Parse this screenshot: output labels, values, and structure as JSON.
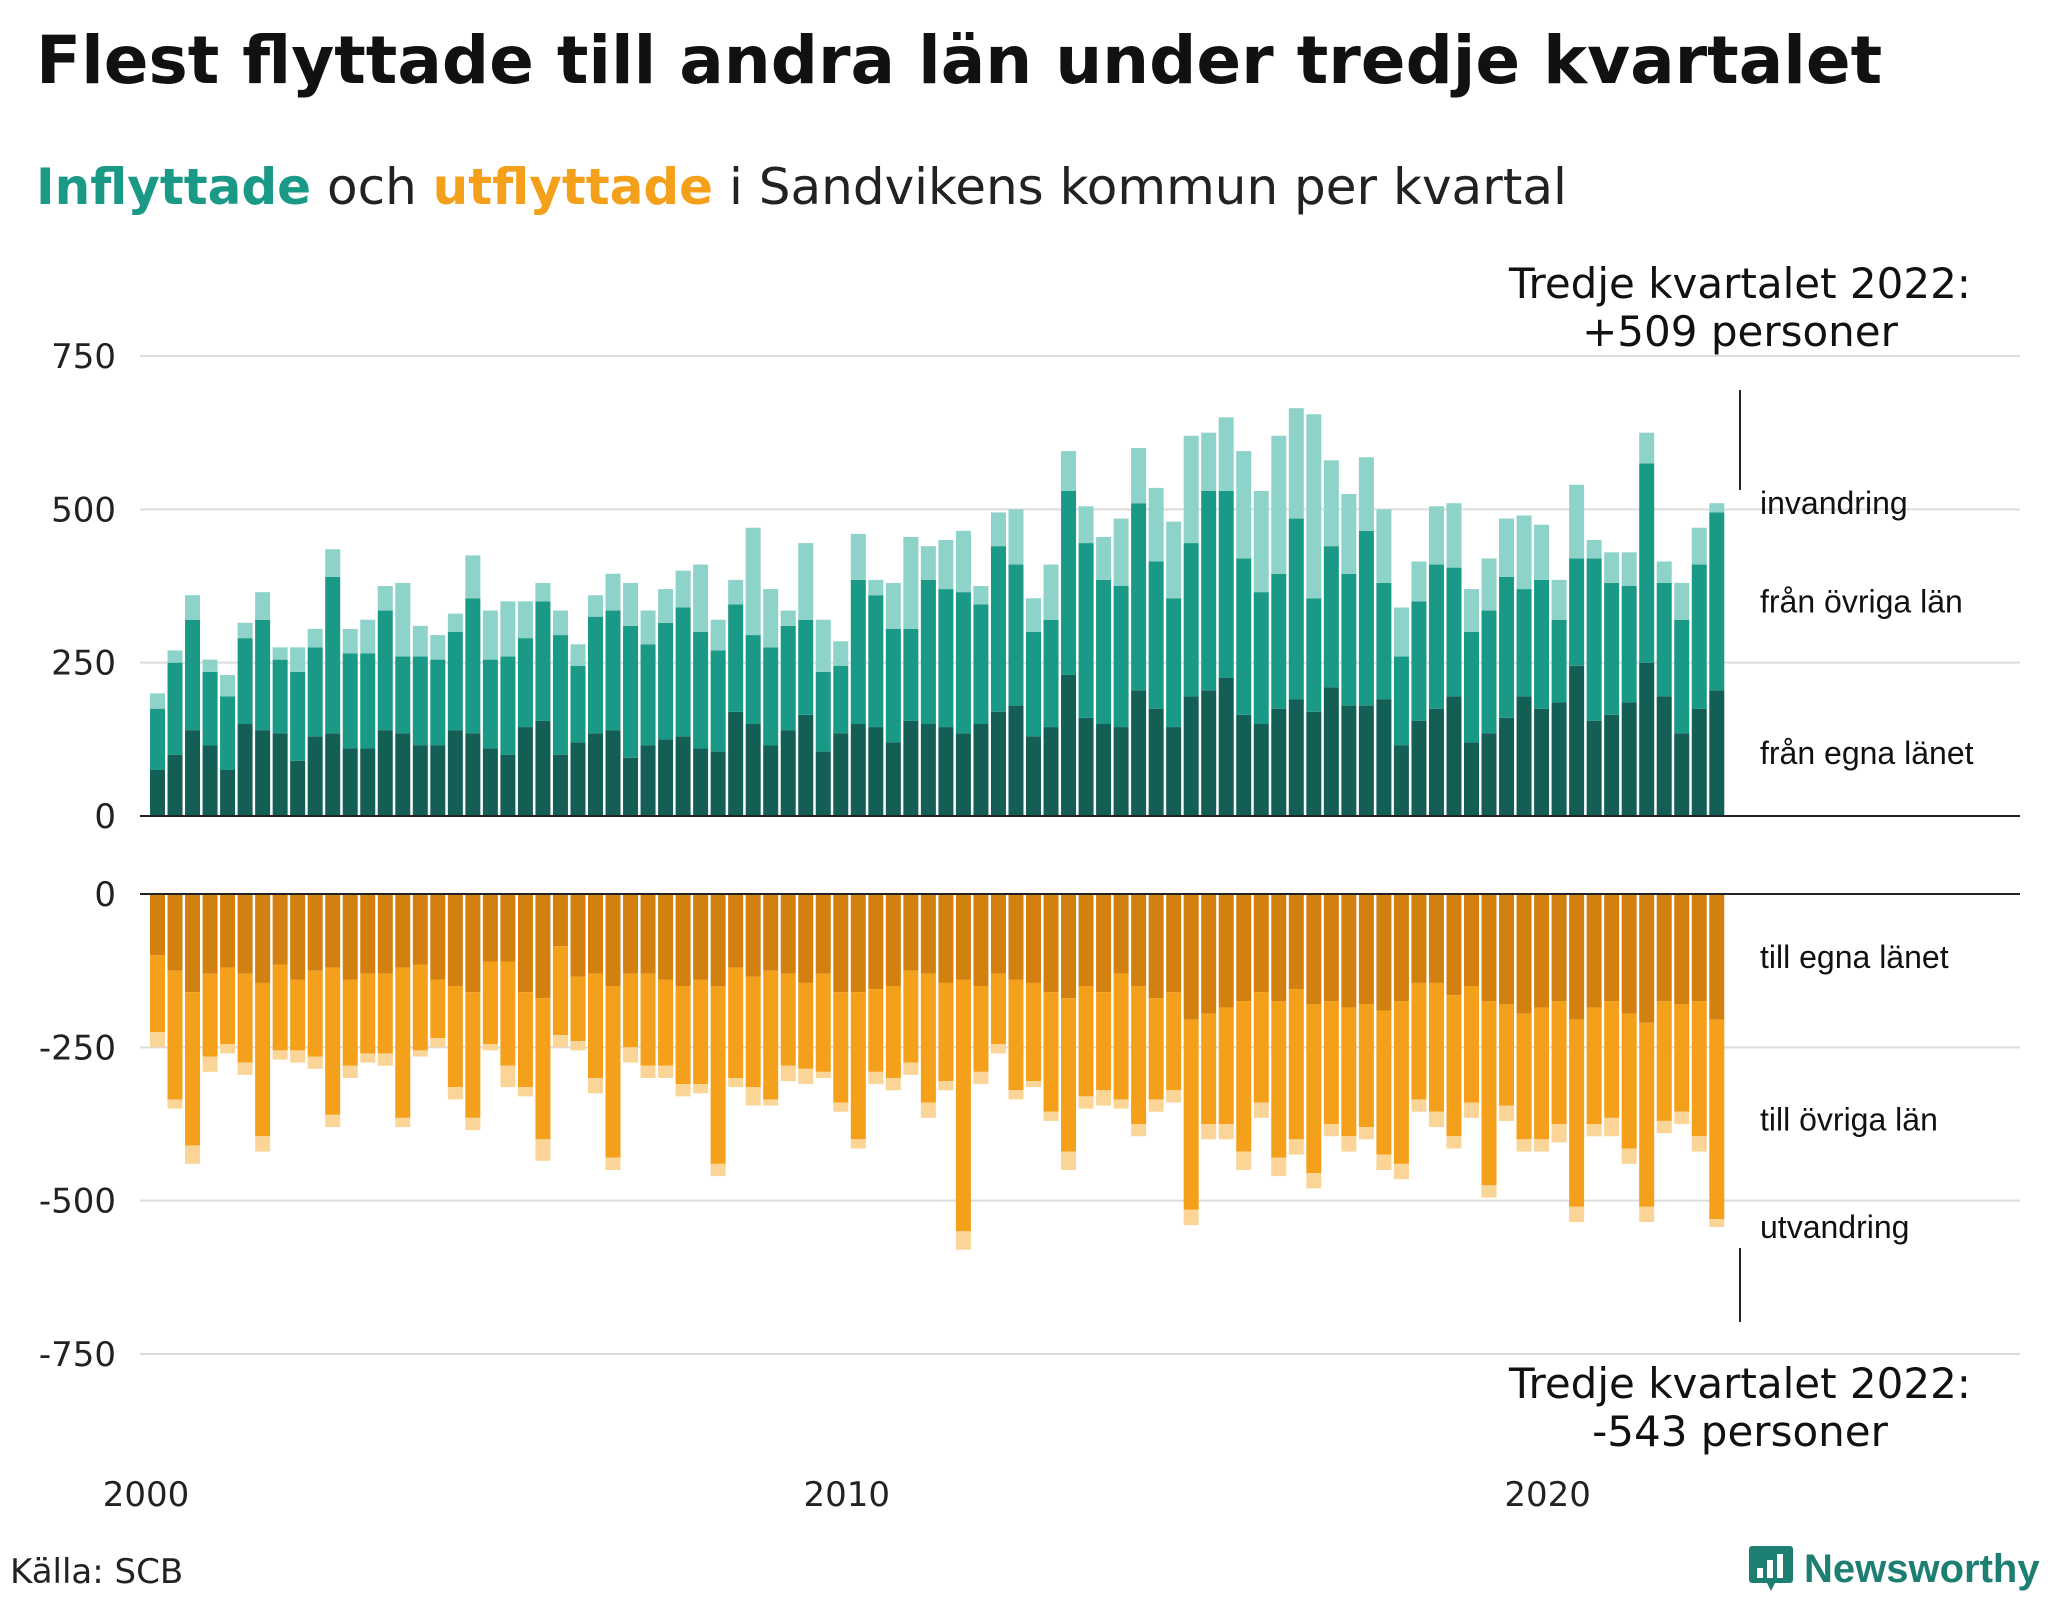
{
  "title": "Flest flyttade till andra län under tredje kvartalet",
  "subtitle": {
    "in_word": "Inflyttade",
    "middle": " och ",
    "out_word": "utflyttade",
    "rest": " i Sandvikens kommun per kvartal"
  },
  "annotations": {
    "top_line1": "Tredje kvartalet 2022:",
    "top_line2": "+509 personer",
    "bottom_line1": "Tredje kvartalet 2022:",
    "bottom_line2": "-543 personer"
  },
  "source": "Källa: SCB",
  "brand": {
    "label": "Newsworthy",
    "icon": "newsworthy-logo-icon"
  },
  "colors": {
    "in_own": "#135f56",
    "in_other": "#1a9987",
    "in_immig": "#8ed3ca",
    "out_own": "#d2800f",
    "out_other": "#f5a01a",
    "out_emig": "#fbd597",
    "grid": "#dddddd",
    "brand": "#1d7f72"
  },
  "chart_data": [
    {
      "type": "bar",
      "stacked": true,
      "title": "Inflyttade",
      "x_start": "2000 Q1",
      "x_ticks": [
        "2000",
        "2010",
        "2020"
      ],
      "y_ticks": [
        "750",
        "500",
        "250",
        "0"
      ],
      "ylim": [
        0,
        750
      ],
      "grid": true,
      "series": [
        {
          "name": "från egna länet",
          "values": [
            75,
            100,
            140,
            115,
            75,
            150,
            140,
            135,
            90,
            130,
            135,
            110,
            110,
            140,
            135,
            115,
            115,
            140,
            135,
            110,
            100,
            145,
            155,
            100,
            120,
            135,
            140,
            95,
            115,
            125,
            130,
            110,
            105,
            170,
            150,
            115,
            140,
            165,
            105,
            135,
            150,
            145,
            120,
            155,
            150,
            145,
            135,
            150,
            170,
            180,
            130,
            145,
            230,
            160,
            150,
            145,
            205,
            175,
            145,
            195,
            205,
            225,
            165,
            150,
            175,
            190,
            170,
            210,
            180,
            180,
            190,
            115,
            155,
            175,
            195,
            120,
            135,
            160,
            195,
            175,
            185,
            245,
            155,
            165,
            185,
            250,
            195,
            135,
            175,
            205
          ]
        },
        {
          "name": "från övriga län",
          "values": [
            100,
            150,
            180,
            120,
            120,
            140,
            180,
            120,
            145,
            145,
            255,
            155,
            155,
            195,
            125,
            145,
            140,
            160,
            220,
            145,
            160,
            145,
            195,
            195,
            125,
            190,
            195,
            215,
            165,
            190,
            210,
            190,
            165,
            175,
            145,
            160,
            170,
            155,
            130,
            110,
            235,
            215,
            185,
            150,
            235,
            225,
            230,
            195,
            270,
            230,
            170,
            175,
            300,
            285,
            235,
            230,
            305,
            240,
            210,
            250,
            325,
            305,
            255,
            215,
            220,
            295,
            185,
            230,
            215,
            285,
            190,
            145,
            195,
            235,
            210,
            180,
            200,
            230,
            175,
            210,
            135,
            175,
            265,
            215,
            190,
            325,
            185,
            185,
            235,
            290
          ]
        },
        {
          "name": "invandring",
          "values": [
            25,
            20,
            40,
            20,
            35,
            25,
            45,
            20,
            40,
            30,
            45,
            40,
            55,
            40,
            120,
            50,
            40,
            30,
            70,
            80,
            90,
            60,
            30,
            40,
            35,
            35,
            60,
            70,
            55,
            55,
            60,
            110,
            50,
            40,
            175,
            95,
            25,
            125,
            85,
            40,
            75,
            25,
            75,
            150,
            55,
            80,
            100,
            30,
            55,
            90,
            55,
            90,
            65,
            60,
            70,
            110,
            90,
            120,
            125,
            175,
            95,
            120,
            175,
            165,
            225,
            180,
            300,
            140,
            130,
            120,
            120,
            80,
            65,
            95,
            105,
            70,
            85,
            95,
            120,
            90,
            65,
            120,
            30,
            50,
            55,
            50,
            35,
            60,
            60,
            15
          ]
        }
      ]
    },
    {
      "type": "bar",
      "stacked": true,
      "title": "Utflyttade",
      "x_start": "2000 Q1",
      "x_ticks": [
        "2000",
        "2010",
        "2020"
      ],
      "y_ticks": [
        "0",
        "-250",
        "-500",
        "-750"
      ],
      "ylim": [
        -750,
        0
      ],
      "grid": true,
      "series": [
        {
          "name": "till egna länet",
          "values": [
            -100,
            -125,
            -160,
            -130,
            -120,
            -130,
            -145,
            -115,
            -140,
            -125,
            -120,
            -140,
            -130,
            -130,
            -120,
            -115,
            -140,
            -150,
            -160,
            -110,
            -110,
            -160,
            -170,
            -85,
            -135,
            -130,
            -150,
            -130,
            -130,
            -140,
            -150,
            -140,
            -150,
            -120,
            -135,
            -125,
            -130,
            -145,
            -130,
            -160,
            -160,
            -155,
            -150,
            -125,
            -130,
            -145,
            -140,
            -150,
            -130,
            -140,
            -145,
            -160,
            -170,
            -150,
            -160,
            -130,
            -150,
            -170,
            -160,
            -205,
            -195,
            -185,
            -175,
            -160,
            -175,
            -155,
            -180,
            -175,
            -185,
            -180,
            -190,
            -175,
            -145,
            -145,
            -165,
            -150,
            -175,
            -180,
            -195,
            -185,
            -175,
            -205,
            -185,
            -175,
            -195,
            -210,
            -175,
            -180,
            -175,
            -205
          ]
        },
        {
          "name": "till övriga län",
          "values": [
            -125,
            -210,
            -250,
            -135,
            -125,
            -145,
            -250,
            -140,
            -115,
            -140,
            -240,
            -140,
            -130,
            -130,
            -245,
            -140,
            -95,
            -165,
            -205,
            -135,
            -170,
            -155,
            -230,
            -145,
            -105,
            -170,
            -280,
            -120,
            -150,
            -140,
            -160,
            -170,
            -290,
            -180,
            -180,
            -210,
            -150,
            -140,
            -160,
            -180,
            -240,
            -135,
            -150,
            -150,
            -210,
            -160,
            -410,
            -140,
            -115,
            -180,
            -160,
            -195,
            -250,
            -180,
            -160,
            -205,
            -225,
            -165,
            -160,
            -310,
            -180,
            -190,
            -245,
            -180,
            -255,
            -245,
            -275,
            -200,
            -210,
            -200,
            -235,
            -265,
            -190,
            -210,
            -230,
            -190,
            -300,
            -165,
            -205,
            -215,
            -200,
            -305,
            -190,
            -190,
            -220,
            -300,
            -195,
            -175,
            -220,
            -325
          ]
        },
        {
          "name": "utvandring",
          "values": [
            -25,
            -15,
            -30,
            -25,
            -15,
            -20,
            -25,
            -15,
            -20,
            -20,
            -20,
            -20,
            -15,
            -20,
            -15,
            -10,
            -15,
            -20,
            -20,
            -10,
            -35,
            -15,
            -35,
            -20,
            -15,
            -25,
            -20,
            -25,
            -20,
            -20,
            -20,
            -15,
            -20,
            -15,
            -30,
            -10,
            -25,
            -25,
            -10,
            -15,
            -15,
            -20,
            -20,
            -20,
            -25,
            -15,
            -30,
            -20,
            -15,
            -15,
            -10,
            -15,
            -30,
            -20,
            -25,
            -15,
            -20,
            -20,
            -20,
            -25,
            -25,
            -25,
            -30,
            -25,
            -30,
            -25,
            -25,
            -20,
            -25,
            -20,
            -25,
            -25,
            -20,
            -25,
            -20,
            -25,
            -20,
            -25,
            -20,
            -20,
            -30,
            -25,
            -20,
            -30,
            -25,
            -25,
            -20,
            -20,
            -25,
            -13
          ]
        }
      ]
    }
  ]
}
